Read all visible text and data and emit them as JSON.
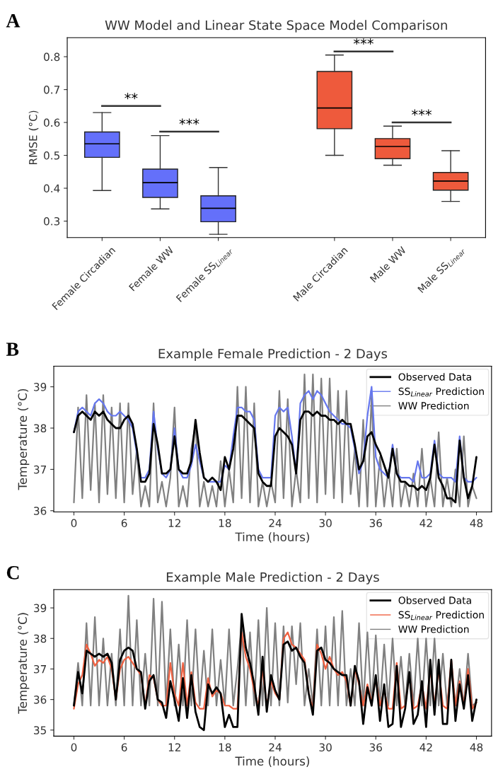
{
  "chart_data": [
    {
      "type": "box",
      "title": "WW Model and Linear State Space Model Comparison",
      "ylabel": "RMSE (°C)",
      "categories": [
        "Female Circadian",
        "Female WW",
        "Female SS$_{Linear}$",
        "Male Circadian",
        "Male WW",
        "Male SS$_{Linear}$"
      ],
      "boxes": [
        {
          "low": 0.393,
          "q1": 0.494,
          "median": 0.535,
          "q3": 0.571,
          "high": 0.63
        },
        {
          "low": 0.337,
          "q1": 0.372,
          "median": 0.417,
          "q3": 0.458,
          "high": 0.56
        },
        {
          "low": 0.26,
          "q1": 0.298,
          "median": 0.339,
          "q3": 0.377,
          "high": 0.463
        },
        {
          "low": 0.5,
          "q1": 0.581,
          "median": 0.644,
          "q3": 0.755,
          "high": 0.805
        },
        {
          "low": 0.47,
          "q1": 0.49,
          "median": 0.527,
          "q3": 0.551,
          "high": 0.589
        },
        {
          "low": 0.36,
          "q1": 0.394,
          "median": 0.422,
          "q3": 0.448,
          "high": 0.514
        }
      ],
      "colors": [
        "#6470fa",
        "#6470fa",
        "#6470fa",
        "#ee5a3c",
        "#ee5a3c",
        "#ee5a3c"
      ],
      "ylim": [
        0.25,
        0.858
      ],
      "yticks": [
        0.3,
        0.4,
        0.5,
        0.6,
        0.7,
        0.8
      ],
      "grid": false,
      "annotations": [
        "A",
        "**",
        "***",
        "***",
        "***"
      ]
    },
    {
      "type": "line",
      "title": "Example Female Prediction - 2 Days",
      "xlabel": "Time (hours)",
      "ylabel": "Temperature (°C)",
      "x": [
        0,
        0.5,
        1,
        1.5,
        2,
        2.5,
        3,
        3.5,
        4,
        4.5,
        5,
        5.5,
        6,
        6.5,
        7,
        7.5,
        8,
        8.5,
        9,
        9.5,
        10,
        10.5,
        11,
        11.5,
        12,
        12.5,
        13,
        13.5,
        14,
        14.5,
        15,
        15.5,
        16,
        16.5,
        17,
        17.5,
        18,
        18.5,
        19,
        19.5,
        20,
        20.5,
        21,
        21.5,
        22,
        22.5,
        23,
        23.5,
        24,
        24.5,
        25,
        25.5,
        26,
        26.5,
        27,
        27.5,
        28,
        28.5,
        29,
        29.5,
        30,
        30.5,
        31,
        31.5,
        32,
        32.5,
        33,
        33.5,
        34,
        34.5,
        35,
        35.5,
        36,
        36.5,
        37,
        37.5,
        38,
        38.5,
        39,
        39.5,
        40,
        40.5,
        41,
        41.5,
        42,
        42.5,
        43,
        43.5,
        44,
        44.5,
        45,
        45.5,
        46,
        46.5,
        47,
        47.5,
        48
      ],
      "series": [
        {
          "name": "Observed Data",
          "color": "#000000",
          "values": [
            37.9,
            38.3,
            38.4,
            38.3,
            38.2,
            38.4,
            38.3,
            38.4,
            38.2,
            38.1,
            38.0,
            38.0,
            38.2,
            38.3,
            38.1,
            37.5,
            36.7,
            36.7,
            36.9,
            38.1,
            37.6,
            36.9,
            36.9,
            37.0,
            37.8,
            37.0,
            36.9,
            36.9,
            37.2,
            38.2,
            37.4,
            36.8,
            36.7,
            36.8,
            36.7,
            36.5,
            37.3,
            37.0,
            37.5,
            38.3,
            38.3,
            38.2,
            38.1,
            38.0,
            36.9,
            36.7,
            36.6,
            36.6,
            37.8,
            38.0,
            37.9,
            37.8,
            37.6,
            36.9,
            38.2,
            38.4,
            38.4,
            38.3,
            38.4,
            38.3,
            38.3,
            38.2,
            38.2,
            38.1,
            38.2,
            38.1,
            38.1,
            37.6,
            37.0,
            37.2,
            37.8,
            37.9,
            37.6,
            37.4,
            37.1,
            36.8,
            37.5,
            36.9,
            36.7,
            36.7,
            36.6,
            36.6,
            36.5,
            36.6,
            36.5,
            36.8,
            37.6,
            36.8,
            36.6,
            36.3,
            36.3,
            36.2,
            37.7,
            36.8,
            36.3,
            36.6,
            37.3
          ]
        },
        {
          "name": "SS$_{Linear}$ Prediction",
          "color": "#6677ee",
          "values": [
            37.9,
            38.4,
            38.5,
            38.4,
            38.3,
            38.6,
            38.7,
            38.6,
            38.4,
            38.3,
            38.3,
            38.4,
            38.3,
            38.2,
            38.0,
            37.4,
            36.8,
            36.8,
            37.0,
            38.4,
            37.5,
            36.9,
            36.8,
            37.0,
            38.0,
            37.0,
            36.8,
            36.8,
            37.1,
            37.6,
            37.2,
            36.8,
            36.7,
            36.7,
            36.7,
            36.7,
            37.1,
            37.0,
            37.8,
            38.5,
            38.5,
            38.4,
            38.4,
            38.2,
            37.0,
            36.8,
            36.8,
            36.8,
            38.3,
            38.5,
            38.4,
            38.5,
            37.8,
            36.9,
            38.6,
            38.8,
            38.9,
            38.7,
            38.9,
            38.8,
            38.6,
            38.4,
            38.3,
            38.2,
            38.1,
            38.1,
            38.0,
            37.5,
            36.9,
            37.2,
            38.3,
            39.0,
            37.3,
            37.0,
            36.9,
            36.8,
            37.6,
            36.9,
            36.8,
            36.8,
            36.8,
            36.7,
            37.2,
            36.8,
            36.8,
            36.9,
            37.7,
            36.9,
            36.8,
            36.8,
            36.8,
            36.7,
            37.8,
            36.8,
            36.7,
            36.7,
            36.8
          ]
        },
        {
          "name": "WW Prediction",
          "color": "#808080",
          "values": [
            36.2,
            38.5,
            36.3,
            38.8,
            36.5,
            38.6,
            36.2,
            38.8,
            36.4,
            38.5,
            36.3,
            38.6,
            36.2,
            38.6,
            36.4,
            37.5,
            36.1,
            36.6,
            36.1,
            38.6,
            36.2,
            36.7,
            36.1,
            36.8,
            38.5,
            36.1,
            36.6,
            36.1,
            37.5,
            38.1,
            36.1,
            36.7,
            36.1,
            36.6,
            36.1,
            37.2,
            36.1,
            37.0,
            36.2,
            39.0,
            36.3,
            39.0,
            36.2,
            38.6,
            36.1,
            36.7,
            36.1,
            36.7,
            36.2,
            38.9,
            36.3,
            38.7,
            36.1,
            37.0,
            36.2,
            39.3,
            36.3,
            39.3,
            36.2,
            39.2,
            36.4,
            39.2,
            36.3,
            38.9,
            36.2,
            38.9,
            36.4,
            37.5,
            36.1,
            38.2,
            36.1,
            38.8,
            36.1,
            37.3,
            36.1,
            37.0,
            36.1,
            37.5,
            36.1,
            36.7,
            36.1,
            36.9,
            36.1,
            37.5,
            36.1,
            36.8,
            36.1,
            37.9,
            36.1,
            36.8,
            36.1,
            37.0,
            36.1,
            37.8,
            36.1,
            36.6,
            36.3
          ]
        }
      ],
      "xlim": [
        -2.4,
        49.8
      ],
      "xticks": [
        0,
        6,
        12,
        18,
        24,
        30,
        36,
        42,
        48
      ],
      "ylim": [
        35.97,
        39.5
      ],
      "yticks": [
        36,
        37,
        38,
        39
      ],
      "grid": false,
      "legend": "top right",
      "marker": "none",
      "line_style": "solid",
      "annotations": [
        "B"
      ]
    },
    {
      "type": "line",
      "title": "Example Male Prediction - 2 Days",
      "xlabel": "Time (hours)",
      "ylabel": "Temperature (°C)",
      "x": [
        0,
        0.5,
        1,
        1.5,
        2,
        2.5,
        3,
        3.5,
        4,
        4.5,
        5,
        5.5,
        6,
        6.5,
        7,
        7.5,
        8,
        8.5,
        9,
        9.5,
        10,
        10.5,
        11,
        11.5,
        12,
        12.5,
        13,
        13.5,
        14,
        14.5,
        15,
        15.5,
        16,
        16.5,
        17,
        17.5,
        18,
        18.5,
        19,
        19.5,
        20,
        20.5,
        21,
        21.5,
        22,
        22.5,
        23,
        23.5,
        24,
        24.5,
        25,
        25.5,
        26,
        26.5,
        27,
        27.5,
        28,
        28.5,
        29,
        29.5,
        30,
        30.5,
        31,
        31.5,
        32,
        32.5,
        33,
        33.5,
        34,
        34.5,
        35,
        35.5,
        36,
        36.5,
        37,
        37.5,
        38,
        38.5,
        39,
        39.5,
        40,
        40.5,
        41,
        41.5,
        42,
        42.5,
        43,
        43.5,
        44,
        44.5,
        45,
        45.5,
        46,
        46.5,
        47,
        47.5,
        48
      ],
      "series": [
        {
          "name": "Observed Data",
          "color": "#000000",
          "values": [
            35.8,
            36.9,
            36.2,
            37.6,
            37.5,
            37.4,
            37.5,
            37.4,
            37.5,
            37.2,
            36.0,
            37.3,
            37.6,
            37.7,
            37.6,
            37.0,
            36.9,
            35.7,
            36.6,
            36.8,
            36.0,
            35.9,
            35.4,
            36.6,
            36.0,
            35.3,
            36.7,
            35.4,
            36.8,
            35.6,
            35.1,
            35.0,
            36.5,
            36.2,
            36.4,
            36.2,
            35.1,
            35.5,
            35.1,
            35.1,
            38.8,
            37.7,
            37.2,
            36.5,
            35.5,
            37.4,
            35.6,
            36.8,
            36.3,
            36.0,
            37.8,
            37.9,
            37.6,
            37.7,
            37.4,
            37.2,
            36.2,
            35.5,
            37.6,
            37.7,
            37.3,
            37.2,
            37.0,
            36.9,
            36.8,
            36.8,
            35.8,
            37.1,
            36.6,
            35.2,
            36.4,
            35.8,
            36.8,
            35.3,
            36.5,
            35.1,
            35.2,
            37.1,
            35.1,
            35.7,
            36.9,
            35.2,
            35.5,
            36.6,
            35.1,
            37.3,
            35.5,
            37.3,
            35.2,
            35.2,
            37.3,
            35.3,
            36.5,
            35.7,
            36.8,
            35.3,
            36.0
          ]
        },
        {
          "name": "SS$_{Linear}$ Prediction",
          "color": "#f06040",
          "values": [
            35.7,
            36.5,
            36.8,
            37.8,
            37.5,
            37.1,
            37.3,
            37.2,
            37.4,
            37.0,
            36.0,
            37.0,
            37.3,
            37.4,
            37.2,
            37.0,
            36.8,
            35.8,
            36.8,
            36.7,
            36.0,
            35.8,
            35.8,
            37.2,
            36.2,
            35.8,
            37.2,
            35.8,
            36.9,
            35.9,
            35.7,
            35.7,
            36.7,
            36.1,
            36.3,
            36.2,
            35.8,
            35.8,
            35.7,
            35.7,
            38.2,
            37.4,
            37.0,
            36.3,
            35.8,
            37.0,
            35.8,
            36.6,
            36.2,
            36.0,
            38.0,
            38.2,
            37.8,
            37.7,
            37.5,
            37.3,
            36.2,
            35.7,
            37.8,
            37.5,
            37.0,
            37.4,
            37.0,
            36.8,
            36.9,
            36.6,
            35.8,
            37.0,
            36.5,
            35.8,
            36.5,
            35.9,
            36.7,
            35.8,
            36.3,
            35.7,
            35.7,
            37.2,
            35.7,
            35.8,
            36.8,
            35.7,
            35.8,
            36.5,
            35.7,
            37.0,
            35.8,
            37.0,
            35.8,
            35.7,
            37.3,
            35.8,
            36.6,
            35.8,
            37.0,
            35.7,
            35.9
          ]
        },
        {
          "name": "WW Prediction",
          "color": "#808080",
          "values": [
            35.8,
            37.2,
            35.8,
            38.5,
            35.8,
            38.7,
            35.8,
            38.0,
            35.8,
            37.5,
            35.8,
            38.3,
            35.8,
            39.4,
            35.8,
            38.6,
            35.8,
            37.5,
            35.8,
            39.3,
            35.8,
            39.2,
            35.8,
            38.3,
            35.8,
            37.8,
            35.8,
            38.6,
            35.8,
            38.3,
            35.8,
            37.6,
            35.8,
            38.3,
            35.8,
            37.3,
            35.8,
            38.3,
            35.8,
            37.0,
            38.5,
            35.8,
            38.2,
            35.8,
            38.6,
            35.8,
            39.0,
            35.8,
            38.5,
            35.8,
            38.4,
            35.9,
            38.4,
            36.5,
            38.5,
            35.8,
            37.0,
            35.8,
            38.3,
            35.8,
            38.4,
            35.8,
            38.7,
            35.8,
            38.9,
            35.8,
            37.0,
            35.8,
            38.5,
            35.8,
            38.2,
            35.8,
            38.1,
            35.8,
            37.8,
            35.8,
            38.0,
            35.8,
            37.4,
            35.8,
            37.5,
            35.8,
            38.0,
            35.8,
            38.0,
            35.8,
            38.0,
            35.8,
            37.5,
            35.8,
            37.0,
            35.8,
            37.0,
            35.8,
            37.5,
            35.8,
            35.9
          ]
        }
      ],
      "xlim": [
        -2.4,
        49.8
      ],
      "xticks": [
        0,
        6,
        12,
        18,
        24,
        30,
        36,
        42,
        48
      ],
      "ylim": [
        34.8,
        39.6
      ],
      "yticks": [
        35,
        36,
        37,
        38,
        39
      ],
      "grid": false,
      "legend": "top right",
      "marker": "none",
      "line_style": "solid",
      "annotations": [
        "C"
      ]
    }
  ]
}
